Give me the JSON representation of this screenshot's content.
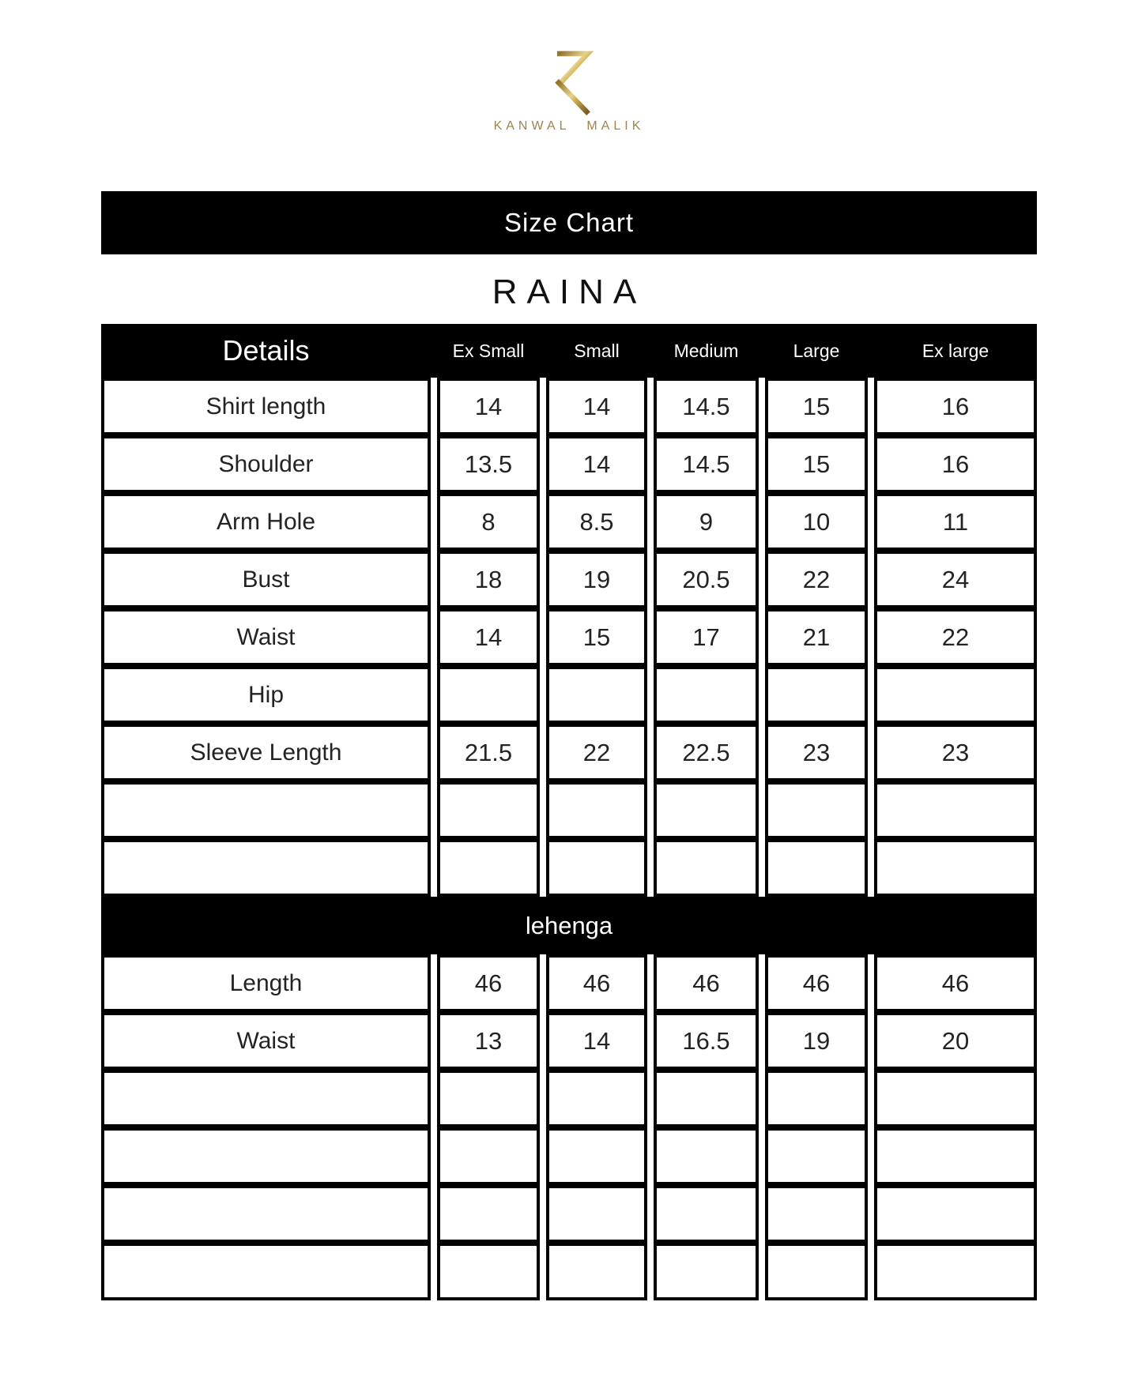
{
  "brand": {
    "monogram_icon": "K-monogram",
    "wordmark": "KANWAL MALIK"
  },
  "size_chart": {
    "banner_title": "Size Chart",
    "product_name": "RAINA",
    "columns": {
      "details_label": "Details",
      "sizes": [
        "Ex Small",
        "Small",
        "Medium",
        "Large",
        "Ex large"
      ]
    },
    "shirt_section": {
      "rows": [
        {
          "label": "Shirt length",
          "values": [
            "14",
            "14",
            "14.5",
            "15",
            "16"
          ]
        },
        {
          "label": "Shoulder",
          "values": [
            "13.5",
            "14",
            "14.5",
            "15",
            "16"
          ]
        },
        {
          "label": "Arm Hole",
          "values": [
            "8",
            "8.5",
            "9",
            "10",
            "11"
          ]
        },
        {
          "label": "Bust",
          "values": [
            "18",
            "19",
            "20.5",
            "22",
            "24"
          ]
        },
        {
          "label": "Waist",
          "values": [
            "14",
            "15",
            "17",
            "21",
            "22"
          ]
        },
        {
          "label": "Hip",
          "values": [
            "",
            "",
            "",
            "",
            ""
          ]
        },
        {
          "label": "Sleeve Length",
          "values": [
            "21.5",
            "22",
            "22.5",
            "23",
            "23"
          ]
        },
        {
          "label": "",
          "values": [
            "",
            "",
            "",
            "",
            ""
          ]
        },
        {
          "label": "",
          "values": [
            "",
            "",
            "",
            "",
            ""
          ]
        }
      ]
    },
    "lehenga_section": {
      "banner_title": "lehenga",
      "rows": [
        {
          "label": "Length",
          "values": [
            "46",
            "46",
            "46",
            "46",
            "46"
          ]
        },
        {
          "label": "Waist",
          "values": [
            "13",
            "14",
            "16.5",
            "19",
            "20"
          ]
        },
        {
          "label": "",
          "values": [
            "",
            "",
            "",
            "",
            ""
          ]
        },
        {
          "label": "",
          "values": [
            "",
            "",
            "",
            "",
            ""
          ]
        },
        {
          "label": "",
          "values": [
            "",
            "",
            "",
            "",
            ""
          ]
        },
        {
          "label": "",
          "values": [
            "",
            "",
            "",
            "",
            ""
          ]
        }
      ]
    }
  },
  "colors": {
    "gold": "#a3824a",
    "gold_light": "#e8d38a",
    "gold_dark": "#8d6c2c",
    "bar_background": "#000000",
    "bar_text": "#ffffff",
    "text": "#232323",
    "border": "#000000"
  }
}
